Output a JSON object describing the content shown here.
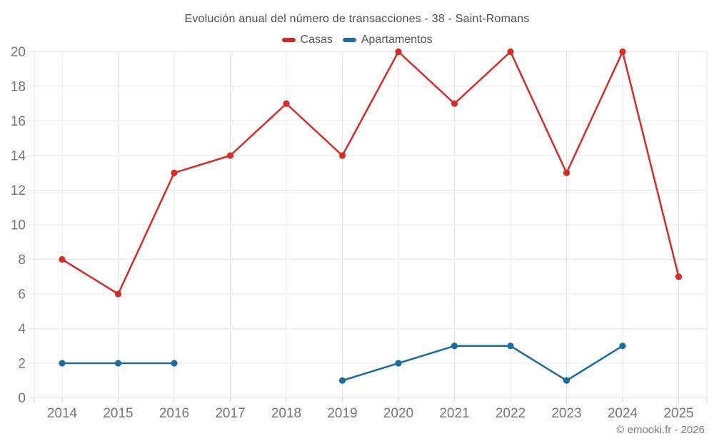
{
  "header": {
    "title": "Evolución anual del número de transacciones - 38 - Saint-Romans"
  },
  "legend": {
    "items": [
      {
        "label": "Casas",
        "color": "#d92b25"
      },
      {
        "label": "Apartamentos",
        "color": "#1b6ca1"
      }
    ]
  },
  "footer": {
    "copyright": "© emooki.fr - 2026"
  },
  "chart_data": {
    "type": "line",
    "title": "Evolución anual del número de transacciones - 38 - Saint-Romans",
    "xlabel": "",
    "ylabel": "",
    "categories": [
      2014,
      2015,
      2016,
      2017,
      2018,
      2019,
      2020,
      2021,
      2022,
      2023,
      2024,
      2025
    ],
    "series": [
      {
        "name": "Casas",
        "color": "#d92b25",
        "values": [
          8,
          6,
          13,
          14,
          17,
          14,
          20,
          17,
          20,
          13,
          20,
          7
        ]
      },
      {
        "name": "Apartamentos",
        "color": "#1b6ca1",
        "values": [
          2,
          2,
          2,
          null,
          null,
          1,
          2,
          3,
          3,
          1,
          3,
          null
        ]
      }
    ],
    "ylim": [
      0,
      20
    ],
    "ytick_step": 2,
    "grid": true,
    "legend_position": "top",
    "colors": {
      "grid": "#e7e7e7",
      "tick": "#d2d2d2",
      "axis_label": "#757575"
    }
  }
}
